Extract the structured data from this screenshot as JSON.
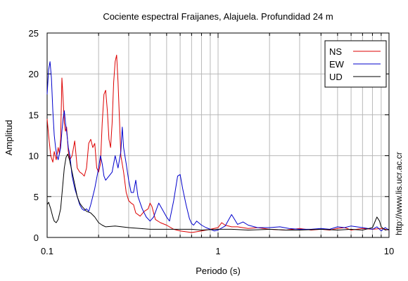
{
  "chart_data": {
    "type": "line",
    "title": "Cociente espectral Fraijanes, Alajuela. Profundidad 24 m",
    "xlabel": "Periodo (s)",
    "ylabel": "Amplitud",
    "x_scale": "log",
    "xlim": [
      0.1,
      10
    ],
    "ylim": [
      0,
      25
    ],
    "x_ticks": [
      {
        "v": 0.1,
        "label": "0.1"
      },
      {
        "v": 1,
        "label": "1"
      },
      {
        "v": 10,
        "label": "10"
      }
    ],
    "y_ticks": [
      {
        "v": 0,
        "label": "0"
      },
      {
        "v": 5,
        "label": "5"
      },
      {
        "v": 10,
        "label": "10"
      },
      {
        "v": 15,
        "label": "15"
      },
      {
        "v": 20,
        "label": "20"
      },
      {
        "v": 25,
        "label": "25"
      }
    ],
    "grid": true,
    "legend_position": "top-right",
    "series": [
      {
        "name": "NS",
        "color": "#dd0000",
        "points": [
          [
            0.1,
            14.5
          ],
          [
            0.102,
            12.5
          ],
          [
            0.105,
            10
          ],
          [
            0.108,
            9.2
          ],
          [
            0.11,
            10.5
          ],
          [
            0.113,
            9.5
          ],
          [
            0.116,
            11
          ],
          [
            0.118,
            10.2
          ],
          [
            0.12,
            12
          ],
          [
            0.122,
            19.5
          ],
          [
            0.124,
            17
          ],
          [
            0.126,
            14
          ],
          [
            0.128,
            13
          ],
          [
            0.13,
            13.5
          ],
          [
            0.133,
            10.5
          ],
          [
            0.136,
            9.5
          ],
          [
            0.14,
            10
          ],
          [
            0.145,
            11.8
          ],
          [
            0.15,
            8.5
          ],
          [
            0.155,
            8
          ],
          [
            0.16,
            7.8
          ],
          [
            0.165,
            7.5
          ],
          [
            0.17,
            8.5
          ],
          [
            0.175,
            11.5
          ],
          [
            0.18,
            12
          ],
          [
            0.185,
            11
          ],
          [
            0.19,
            11.5
          ],
          [
            0.195,
            8.5
          ],
          [
            0.2,
            8
          ],
          [
            0.205,
            9
          ],
          [
            0.21,
            14
          ],
          [
            0.215,
            17.5
          ],
          [
            0.22,
            18
          ],
          [
            0.225,
            15.5
          ],
          [
            0.23,
            12
          ],
          [
            0.235,
            11
          ],
          [
            0.24,
            14
          ],
          [
            0.245,
            19
          ],
          [
            0.25,
            21.5
          ],
          [
            0.255,
            22.3
          ],
          [
            0.26,
            19
          ],
          [
            0.265,
            14.5
          ],
          [
            0.27,
            10
          ],
          [
            0.28,
            8
          ],
          [
            0.29,
            5.5
          ],
          [
            0.3,
            4.5
          ],
          [
            0.31,
            4.2
          ],
          [
            0.32,
            4
          ],
          [
            0.33,
            3
          ],
          [
            0.35,
            2.6
          ],
          [
            0.37,
            3.2
          ],
          [
            0.39,
            3.5
          ],
          [
            0.4,
            4.2
          ],
          [
            0.41,
            3.8
          ],
          [
            0.43,
            2.2
          ],
          [
            0.46,
            1.8
          ],
          [
            0.5,
            1.5
          ],
          [
            0.55,
            1
          ],
          [
            0.6,
            0.8
          ],
          [
            0.7,
            0.6
          ],
          [
            0.8,
            0.8
          ],
          [
            0.9,
            1
          ],
          [
            1,
            1.2
          ],
          [
            1.05,
            1.8
          ],
          [
            1.1,
            1.5
          ],
          [
            1.2,
            1.3
          ],
          [
            1.3,
            1.3
          ],
          [
            1.5,
            1.1
          ],
          [
            1.7,
            1.2
          ],
          [
            2,
            1
          ],
          [
            2.5,
            0.9
          ],
          [
            3,
            1.1
          ],
          [
            3.5,
            0.9
          ],
          [
            4,
            1
          ],
          [
            4.5,
            0.9
          ],
          [
            5,
            1.1
          ],
          [
            5.5,
            1.2
          ],
          [
            6,
            0.9
          ],
          [
            7,
            1.1
          ],
          [
            8,
            1
          ],
          [
            9,
            1.1
          ],
          [
            10,
            0.9
          ]
        ]
      },
      {
        "name": "EW",
        "color": "#0000cc",
        "points": [
          [
            0.1,
            17.5
          ],
          [
            0.102,
            20.5
          ],
          [
            0.104,
            21.5
          ],
          [
            0.106,
            19.5
          ],
          [
            0.108,
            15.5
          ],
          [
            0.11,
            12.5
          ],
          [
            0.112,
            11
          ],
          [
            0.114,
            10
          ],
          [
            0.116,
            9.5
          ],
          [
            0.12,
            11
          ],
          [
            0.122,
            13
          ],
          [
            0.124,
            14.5
          ],
          [
            0.126,
            15.5
          ],
          [
            0.128,
            14
          ],
          [
            0.13,
            13
          ],
          [
            0.133,
            11
          ],
          [
            0.136,
            10
          ],
          [
            0.14,
            7.5
          ],
          [
            0.145,
            6
          ],
          [
            0.15,
            5
          ],
          [
            0.155,
            4
          ],
          [
            0.16,
            3.5
          ],
          [
            0.165,
            3.3
          ],
          [
            0.17,
            3.5
          ],
          [
            0.175,
            3.2
          ],
          [
            0.18,
            4
          ],
          [
            0.19,
            6
          ],
          [
            0.2,
            8.5
          ],
          [
            0.205,
            10
          ],
          [
            0.21,
            9
          ],
          [
            0.215,
            7.5
          ],
          [
            0.22,
            7
          ],
          [
            0.23,
            7.5
          ],
          [
            0.24,
            8
          ],
          [
            0.25,
            10
          ],
          [
            0.26,
            8.5
          ],
          [
            0.27,
            10.5
          ],
          [
            0.275,
            13.5
          ],
          [
            0.28,
            11
          ],
          [
            0.29,
            9
          ],
          [
            0.3,
            7
          ],
          [
            0.31,
            5.5
          ],
          [
            0.32,
            5.5
          ],
          [
            0.33,
            7
          ],
          [
            0.34,
            5
          ],
          [
            0.36,
            3.5
          ],
          [
            0.38,
            2.5
          ],
          [
            0.4,
            2
          ],
          [
            0.42,
            2.5
          ],
          [
            0.45,
            4.2
          ],
          [
            0.47,
            3.5
          ],
          [
            0.5,
            2.5
          ],
          [
            0.52,
            2
          ],
          [
            0.55,
            4.5
          ],
          [
            0.58,
            7.5
          ],
          [
            0.6,
            7.7
          ],
          [
            0.62,
            6
          ],
          [
            0.65,
            4
          ],
          [
            0.68,
            2.3
          ],
          [
            0.7,
            1.7
          ],
          [
            0.72,
            1.5
          ],
          [
            0.75,
            2
          ],
          [
            0.8,
            1.5
          ],
          [
            0.85,
            1.2
          ],
          [
            0.9,
            1
          ],
          [
            0.95,
            0.8
          ],
          [
            1,
            0.9
          ],
          [
            1.1,
            1.4
          ],
          [
            1.2,
            2.8
          ],
          [
            1.25,
            2.2
          ],
          [
            1.3,
            1.6
          ],
          [
            1.4,
            1.9
          ],
          [
            1.5,
            1.5
          ],
          [
            1.7,
            1.2
          ],
          [
            2,
            1.2
          ],
          [
            2.3,
            1.3
          ],
          [
            2.6,
            1.1
          ],
          [
            3,
            1
          ],
          [
            3.5,
            1
          ],
          [
            4,
            1.1
          ],
          [
            4.5,
            1
          ],
          [
            5,
            1.3
          ],
          [
            5.5,
            1.2
          ],
          [
            6,
            1.4
          ],
          [
            7,
            1.2
          ],
          [
            8,
            1
          ],
          [
            8.5,
            1.3
          ],
          [
            9,
            0.8
          ],
          [
            9.5,
            1.2
          ],
          [
            10,
            0.9
          ]
        ]
      },
      {
        "name": "UD",
        "color": "#000000",
        "points": [
          [
            0.1,
            4
          ],
          [
            0.102,
            4.3
          ],
          [
            0.105,
            3.5
          ],
          [
            0.108,
            2.5
          ],
          [
            0.11,
            2
          ],
          [
            0.113,
            1.8
          ],
          [
            0.116,
            2.2
          ],
          [
            0.12,
            3.5
          ],
          [
            0.123,
            6
          ],
          [
            0.126,
            8.5
          ],
          [
            0.129,
            9.8
          ],
          [
            0.132,
            10.2
          ],
          [
            0.135,
            9.5
          ],
          [
            0.14,
            8
          ],
          [
            0.145,
            6.5
          ],
          [
            0.15,
            5
          ],
          [
            0.155,
            4.2
          ],
          [
            0.16,
            3.8
          ],
          [
            0.165,
            3.5
          ],
          [
            0.17,
            3.2
          ],
          [
            0.18,
            3
          ],
          [
            0.19,
            2.5
          ],
          [
            0.2,
            1.8
          ],
          [
            0.21,
            1.5
          ],
          [
            0.22,
            1.3
          ],
          [
            0.25,
            1.4
          ],
          [
            0.3,
            1.2
          ],
          [
            0.35,
            1.1
          ],
          [
            0.4,
            1
          ],
          [
            0.5,
            1
          ],
          [
            0.6,
            1
          ],
          [
            0.7,
            1
          ],
          [
            0.8,
            0.9
          ],
          [
            1,
            1
          ],
          [
            1.2,
            1
          ],
          [
            1.5,
            0.9
          ],
          [
            2,
            1
          ],
          [
            2.5,
            0.9
          ],
          [
            3,
            0.9
          ],
          [
            4,
            1
          ],
          [
            5,
            0.9
          ],
          [
            6,
            1
          ],
          [
            7,
            0.9
          ],
          [
            8,
            1.2
          ],
          [
            8.5,
            2.5
          ],
          [
            8.8,
            2
          ],
          [
            9,
            1.3
          ],
          [
            9.5,
            0.9
          ],
          [
            10,
            1
          ]
        ]
      }
    ]
  },
  "side_credit": "http://www.lis.ucr.ac.cr"
}
